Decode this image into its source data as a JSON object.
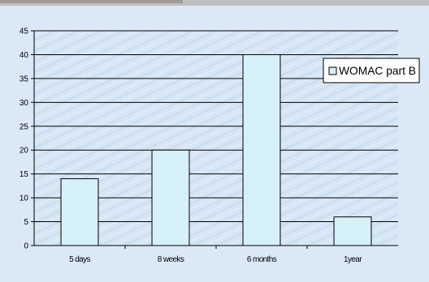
{
  "chart_data": {
    "type": "bar",
    "categories": [
      "5 days",
      "8 weeks",
      "6 months",
      "1year"
    ],
    "series": [
      {
        "name": "WOMAC part B",
        "values": [
          14,
          20,
          40,
          6
        ]
      }
    ],
    "title": "",
    "xlabel": "",
    "ylabel": "",
    "ylim": [
      0,
      45
    ],
    "yticks": [
      0,
      5,
      10,
      15,
      20,
      25,
      30,
      35,
      40,
      45
    ],
    "grid": true,
    "legend": "right",
    "colors": {
      "bar": "#d4f1f7",
      "bar_edge": "#000000",
      "grid": "#000000",
      "plot_background": "#d6e6f4"
    }
  }
}
